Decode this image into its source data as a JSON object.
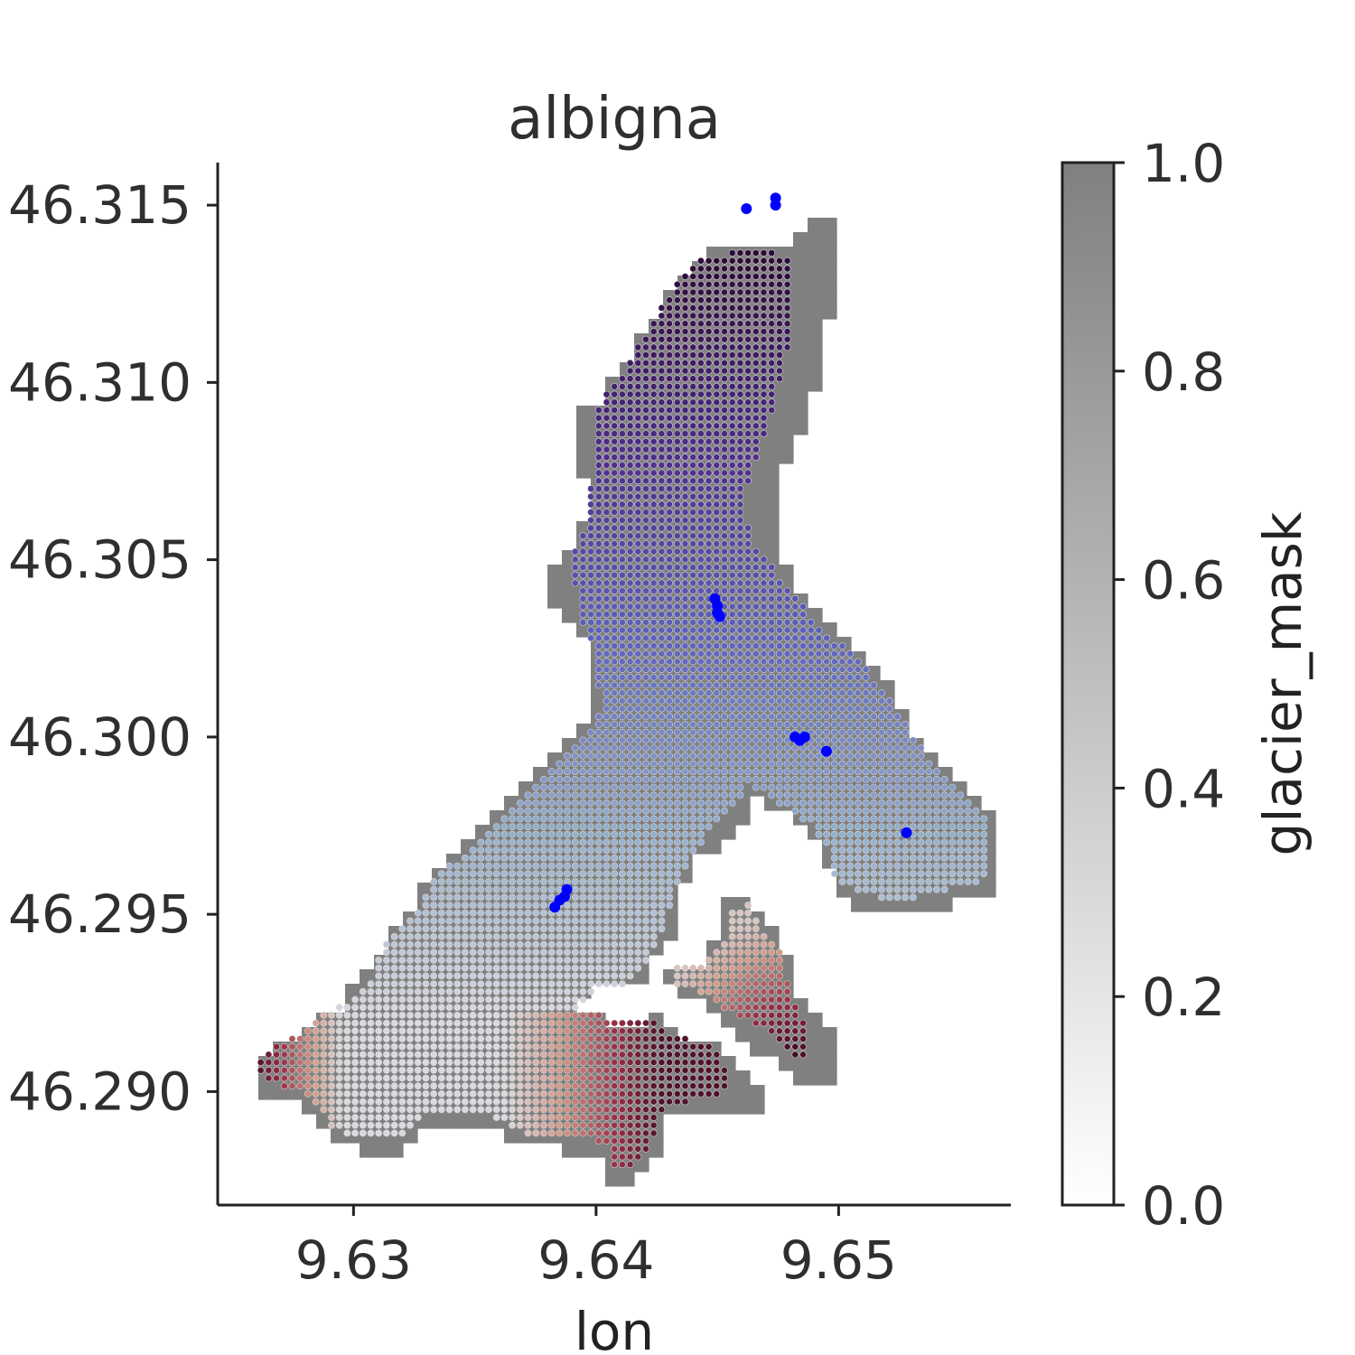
{
  "chart_data": {
    "type": "scatter",
    "title": "albigna",
    "xlabel": "lon",
    "ylabel": "",
    "xlim": [
      9.6244,
      9.6571
    ],
    "ylim": [
      46.2868,
      46.3162
    ],
    "x_ticks": [
      "9.63",
      "9.64",
      "9.65"
    ],
    "y_ticks": [
      "46.290",
      "46.295",
      "46.300",
      "46.305",
      "46.310",
      "46.315"
    ],
    "grid": false,
    "background_layer": {
      "name": "glacier_mask",
      "description": "grey raster cells where glacier_mask = 1",
      "color": "#808080"
    },
    "surface_layer": {
      "description": "dense grid of small colored dots over the glacier; color ramps from dark purple in the north through blue and pale grey to dark red in the south-west and south lobes",
      "colormap_stops": [
        "#2d0a35",
        "#4f2a8a",
        "#5b62be",
        "#93b0cf",
        "#dcd9e0",
        "#d79a86",
        "#9a2d46",
        "#3c0a24"
      ]
    },
    "point_series": {
      "color": "#0000ff",
      "points": [
        {
          "x": 9.6462,
          "y": 46.3149
        },
        {
          "x": 9.6474,
          "y": 46.3152
        },
        {
          "x": 9.6474,
          "y": 46.315
        },
        {
          "x": 9.6449,
          "y": 46.3039
        },
        {
          "x": 9.645,
          "y": 46.3037
        },
        {
          "x": 9.645,
          "y": 46.3035
        },
        {
          "x": 9.6451,
          "y": 46.3034
        },
        {
          "x": 9.6482,
          "y": 46.3
        },
        {
          "x": 9.6484,
          "y": 46.2999
        },
        {
          "x": 9.6486,
          "y": 46.3
        },
        {
          "x": 9.6495,
          "y": 46.2996
        },
        {
          "x": 9.6528,
          "y": 46.2973
        },
        {
          "x": 9.6383,
          "y": 46.2952
        },
        {
          "x": 9.6385,
          "y": 46.2954
        },
        {
          "x": 9.6387,
          "y": 46.2955
        },
        {
          "x": 9.6388,
          "y": 46.2957
        }
      ]
    },
    "colorbar": {
      "label": "glacier_mask",
      "min": 0.0,
      "max": 1.0,
      "ticks": [
        "0.0",
        "0.2",
        "0.4",
        "0.6",
        "0.8",
        "1.0"
      ],
      "color_low": "#ffffff",
      "color_high": "#808080"
    }
  }
}
